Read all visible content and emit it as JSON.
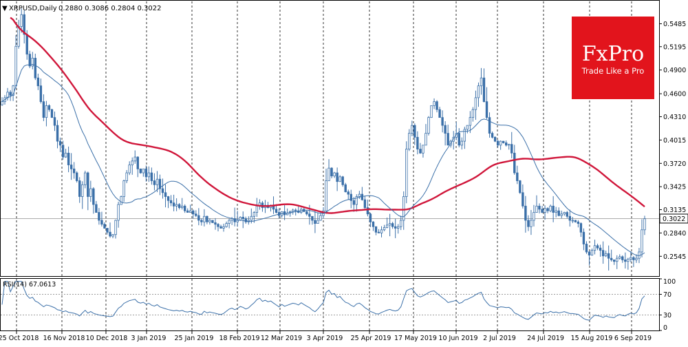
{
  "header": {
    "symbol_text": "XRPUSD,Daily",
    "ohlc_text": "0.2880 0.3086 0.2804 0.3022"
  },
  "logo": {
    "brand": "FxPro",
    "tagline": "Trade Like a Pro",
    "color": "#e2141c"
  },
  "colors": {
    "candle": "#3a6fa8",
    "ma_slow": "#d0163a",
    "ma_fast": "#3a6fa8",
    "rsi": "#3a6fa8",
    "grid_dash": "#000000",
    "axis": "#000000",
    "price_line": "#aaaaaa"
  },
  "chart_data": [
    {
      "type": "candlestick",
      "title": "XRPUSD,Daily",
      "current_price": 0.3022,
      "current_price_label": "0.3022",
      "ylim": [
        0.2295,
        0.5785
      ],
      "y_ticks": [
        0.5485,
        0.5195,
        0.49,
        0.46,
        0.431,
        0.4015,
        0.372,
        0.3425,
        0.3135,
        0.284,
        0.2545
      ],
      "y_tick_labels": [
        "0.5485",
        "0.5195",
        "0.4900",
        "0.4600",
        "0.4310",
        "0.4015",
        "0.3720",
        "0.3425",
        "0.3135",
        "0.2840",
        "0.2545"
      ],
      "x_labels": [
        "25 Oct 2018",
        "16 Nov 2018",
        "10 Dec 2018",
        "3 Jan 2019",
        "25 Jan 2019",
        "18 Feb 2019",
        "12 Mar 2019",
        "3 Apr 2019",
        "25 Apr 2019",
        "17 May 2019",
        "10 Jun 2019",
        "2 Jul 2019",
        "24 Jul 2019",
        "15 Aug 2019",
        "6 Sep 2019"
      ],
      "grid": "vertical dashed at date labels",
      "close_series": [
        0.45,
        0.455,
        0.462,
        0.458,
        0.47,
        0.52,
        0.545,
        0.56,
        0.535,
        0.51,
        0.495,
        0.505,
        0.48,
        0.47,
        0.45,
        0.43,
        0.445,
        0.44,
        0.43,
        0.42,
        0.4,
        0.395,
        0.38,
        0.385,
        0.37,
        0.365,
        0.36,
        0.35,
        0.33,
        0.345,
        0.36,
        0.33,
        0.34,
        0.32,
        0.31,
        0.3,
        0.295,
        0.29,
        0.285,
        0.28,
        0.282,
        0.3,
        0.32,
        0.33,
        0.35,
        0.36,
        0.37,
        0.375,
        0.38,
        0.365,
        0.36,
        0.365,
        0.355,
        0.36,
        0.35,
        0.345,
        0.352,
        0.34,
        0.335,
        0.33,
        0.325,
        0.322,
        0.318,
        0.32,
        0.316,
        0.318,
        0.312,
        0.31,
        0.312,
        0.308,
        0.306,
        0.3,
        0.298,
        0.305,
        0.298,
        0.3,
        0.297,
        0.295,
        0.292,
        0.29,
        0.292,
        0.296,
        0.3,
        0.302,
        0.298,
        0.3,
        0.304,
        0.302,
        0.298,
        0.3,
        0.305,
        0.31,
        0.318,
        0.322,
        0.316,
        0.319,
        0.316,
        0.318,
        0.314,
        0.31,
        0.306,
        0.311,
        0.307,
        0.309,
        0.311,
        0.313,
        0.312,
        0.31,
        0.314,
        0.311,
        0.308,
        0.305,
        0.3,
        0.296,
        0.3,
        0.306,
        0.312,
        0.35,
        0.366,
        0.356,
        0.36,
        0.349,
        0.355,
        0.345,
        0.336,
        0.333,
        0.325,
        0.32,
        0.33,
        0.333,
        0.326,
        0.316,
        0.308,
        0.298,
        0.292,
        0.285,
        0.284,
        0.288,
        0.291,
        0.294,
        0.296,
        0.292,
        0.29,
        0.292,
        0.3,
        0.33,
        0.39,
        0.41,
        0.42,
        0.405,
        0.39,
        0.385,
        0.395,
        0.41,
        0.43,
        0.445,
        0.45,
        0.44,
        0.43,
        0.42,
        0.41,
        0.395,
        0.4,
        0.405,
        0.41,
        0.395,
        0.4,
        0.415,
        0.42,
        0.43,
        0.44,
        0.455,
        0.47,
        0.48,
        0.45,
        0.43,
        0.41,
        0.405,
        0.4,
        0.395,
        0.4,
        0.398,
        0.395,
        0.396,
        0.385,
        0.36,
        0.35,
        0.335,
        0.318,
        0.3,
        0.292,
        0.3,
        0.31,
        0.318,
        0.314,
        0.31,
        0.315,
        0.312,
        0.318,
        0.31,
        0.312,
        0.306,
        0.308,
        0.31,
        0.305,
        0.3,
        0.3,
        0.298,
        0.296,
        0.285,
        0.27,
        0.26,
        0.256,
        0.262,
        0.268,
        0.265,
        0.262,
        0.255,
        0.258,
        0.252,
        0.25,
        0.248,
        0.252,
        0.254,
        0.25,
        0.248,
        0.251,
        0.253,
        0.25,
        0.252,
        0.26,
        0.288,
        0.302
      ]
    },
    {
      "type": "line",
      "title": "RSI(14) 67.0613",
      "ylim": [
        0,
        100
      ],
      "y_ticks": [
        100,
        70,
        30,
        0
      ],
      "levels": [
        70,
        30
      ],
      "current_value": 67.0613
    }
  ]
}
